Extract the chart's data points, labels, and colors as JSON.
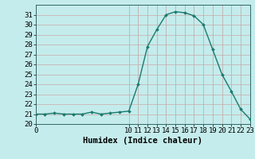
{
  "x": [
    0,
    1,
    2,
    3,
    4,
    5,
    6,
    7,
    8,
    9,
    10,
    11,
    12,
    13,
    14,
    15,
    16,
    17,
    18,
    19,
    20,
    21,
    22,
    23
  ],
  "y": [
    21,
    21,
    21.1,
    21,
    21,
    21,
    21.2,
    21,
    21.1,
    21.2,
    21.3,
    24,
    27.8,
    29.5,
    31,
    31.3,
    31.2,
    30.9,
    30,
    27.5,
    25,
    23.3,
    21.5,
    20.5
  ],
  "line_color": "#1a7a6e",
  "marker_color": "#1a7a6e",
  "bg_color": "#c5ecec",
  "grid_color_h": "#c8b4b4",
  "grid_color_v": "#c0b0b0",
  "xlabel": "Humidex (Indice chaleur)",
  "xlim": [
    0,
    23
  ],
  "ylim": [
    20,
    32
  ],
  "yticks": [
    20,
    21,
    22,
    23,
    24,
    25,
    26,
    27,
    28,
    29,
    30,
    31
  ],
  "xticks": [
    0,
    10,
    11,
    12,
    13,
    14,
    15,
    16,
    17,
    18,
    19,
    20,
    21,
    22,
    23
  ],
  "xlabel_fontsize": 7.5,
  "tick_fontsize": 6.5
}
